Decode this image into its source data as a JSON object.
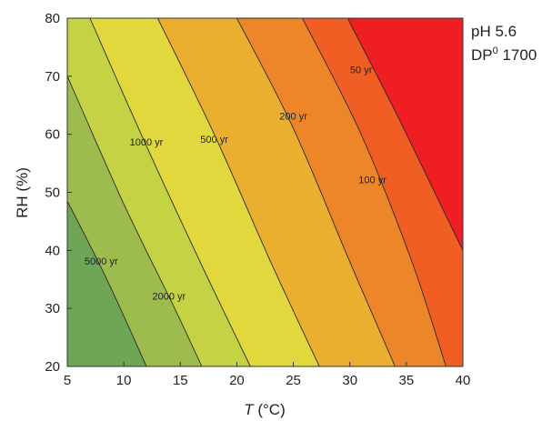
{
  "chart_data": {
    "type": "contour",
    "xlabel_var": "T",
    "xlabel_unit": " (°C)",
    "ylabel": "RH (%)",
    "xlim": [
      5,
      40
    ],
    "ylim": [
      20,
      80
    ],
    "xticks": [
      5,
      10,
      15,
      20,
      25,
      30,
      35,
      40
    ],
    "yticks": [
      20,
      30,
      40,
      50,
      60,
      70,
      80
    ],
    "annotations": {
      "ph": "pH 5.6",
      "dp_base": "DP",
      "dp_sup": "0",
      "dp_value": " 1700"
    },
    "contours": [
      {
        "label": "5000 yr",
        "label_at": [
          8,
          38
        ],
        "points": [
          [
            5,
            48.5
          ],
          [
            8.5,
            35
          ],
          [
            12,
            20
          ]
        ]
      },
      {
        "label": "2000 yr",
        "label_at": [
          14,
          32
        ],
        "points": [
          [
            5,
            70
          ],
          [
            10,
            48
          ],
          [
            14.5,
            30
          ],
          [
            16.9,
            20
          ]
        ]
      },
      {
        "label": "1000 yr",
        "label_at": [
          12,
          58.5
        ],
        "points": [
          [
            7,
            80
          ],
          [
            12,
            58
          ],
          [
            17,
            37
          ],
          [
            21.2,
            20
          ]
        ]
      },
      {
        "label": "500 yr",
        "label_at": [
          18,
          59
        ],
        "points": [
          [
            13,
            80
          ],
          [
            18,
            60
          ],
          [
            23,
            38
          ],
          [
            27.3,
            20
          ]
        ]
      },
      {
        "label": "200 yr",
        "label_at": [
          25,
          63
        ],
        "points": [
          [
            20,
            80
          ],
          [
            25,
            61
          ],
          [
            30,
            38
          ],
          [
            34,
            20
          ]
        ]
      },
      {
        "label": "100 yr",
        "label_at": [
          32,
          52
        ],
        "points": [
          [
            25.8,
            80
          ],
          [
            31,
            60
          ],
          [
            35.5,
            38
          ],
          [
            38.5,
            20
          ]
        ]
      },
      {
        "label": "50 yr",
        "label_at": [
          31,
          71
        ],
        "points": [
          [
            29.8,
            80
          ],
          [
            34,
            64
          ],
          [
            38,
            48
          ],
          [
            40,
            40
          ]
        ]
      }
    ],
    "fill_colors": [
      "#6ea556",
      "#9ebc4d",
      "#c4d243",
      "#e0d83c",
      "#ebaf2f",
      "#ec8628",
      "#f15e23",
      "#ee1e23"
    ]
  }
}
